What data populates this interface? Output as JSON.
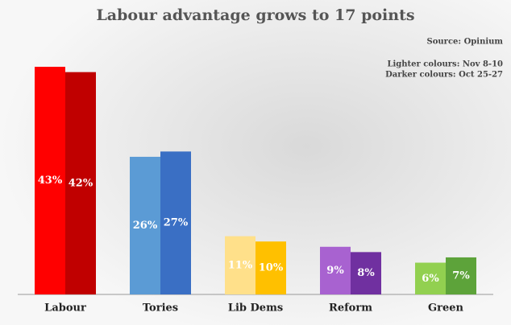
{
  "chart_data": {
    "type": "bar",
    "title": "Labour advantage grows to 17 points",
    "source": "Source: Opinium",
    "notes": [
      "Lighter colours: Nov 8-10",
      "Darker colours: Oct 25-27"
    ],
    "categories": [
      "Labour",
      "Tories",
      "Lib Dems",
      "Reform",
      "Green"
    ],
    "series": [
      {
        "colors": [
          "#ff0000",
          "#5b9bd5",
          "#ffe08a",
          "#a862d0",
          "#92d050"
        ],
        "values": [
          43,
          26,
          11,
          9,
          6
        ],
        "value_labels": [
          "43%",
          "26%",
          "11%",
          "9%",
          "6%"
        ]
      },
      {
        "colors": [
          "#c00000",
          "#3a6fc4",
          "#ffc000",
          "#7030a0",
          "#5da33a"
        ],
        "values": [
          42,
          27,
          10,
          8,
          7
        ],
        "value_labels": [
          "42%",
          "27%",
          "10%",
          "8%",
          "7%"
        ]
      }
    ],
    "ylim": [
      0,
      50
    ]
  }
}
